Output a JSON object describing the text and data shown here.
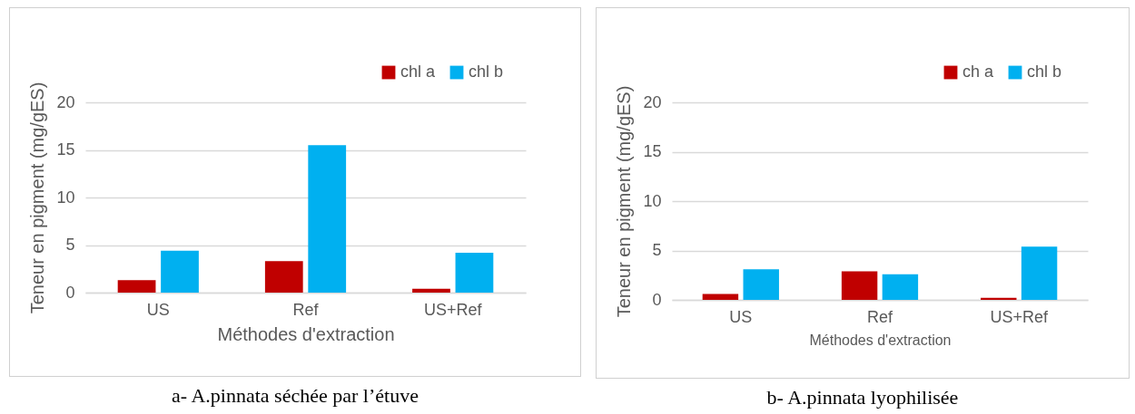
{
  "chart_data": [
    {
      "type": "bar",
      "categories": [
        "US",
        "Ref",
        "US+Ref"
      ],
      "xlabel": "Méthodes d'extraction",
      "ylabel": "Teneur en pigment (mg/gES)",
      "ylim": [
        0,
        20
      ],
      "yticks": [
        0,
        5,
        10,
        15,
        20
      ],
      "grid": "y",
      "legend": "top right",
      "annotations": [
        "a- A.pinnata séchée par l’étuve"
      ],
      "series": [
        {
          "name": "chl a",
          "color": "#c00000",
          "values": [
            1.3,
            3.3,
            0.4
          ]
        },
        {
          "name": "chl b",
          "color": "#00b0f0",
          "values": [
            4.4,
            15.5,
            4.2
          ]
        }
      ]
    },
    {
      "type": "bar",
      "categories": [
        "US",
        "Ref",
        "US+Ref"
      ],
      "xlabel": "Méthodes d'extraction",
      "ylabel": "Teneur en pigment (mg/gES)",
      "ylim": [
        0,
        20
      ],
      "yticks": [
        0,
        5,
        10,
        15,
        20
      ],
      "grid": "y",
      "legend": "top right",
      "annotations": [
        "b- A.pinnata lyophilisée"
      ],
      "series": [
        {
          "name": "ch a",
          "color": "#c00000",
          "values": [
            0.6,
            2.9,
            0.2
          ]
        },
        {
          "name": "chl b",
          "color": "#00b0f0",
          "values": [
            3.1,
            2.6,
            5.4
          ]
        }
      ]
    }
  ]
}
